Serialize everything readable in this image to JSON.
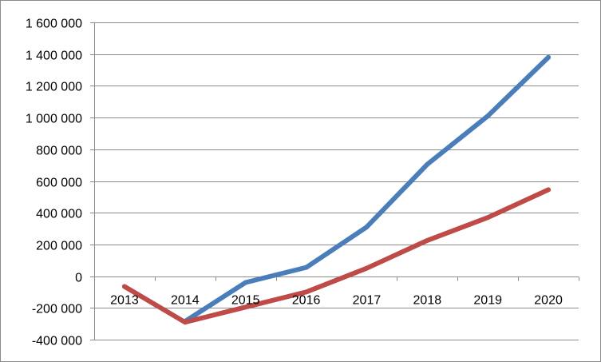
{
  "chart_data": {
    "type": "line",
    "title": "",
    "xlabel": "",
    "ylabel": "",
    "categories": [
      "2013",
      "2014",
      "2015",
      "2016",
      "2017",
      "2018",
      "2019",
      "2020"
    ],
    "ylim": [
      -400000,
      1600000
    ],
    "yticks": [
      -400000,
      -200000,
      0,
      200000,
      400000,
      600000,
      800000,
      1000000,
      1200000,
      1400000,
      1600000
    ],
    "ytick_labels": [
      "-400 000",
      "-200 000",
      "0",
      "200 000",
      "400 000",
      "600 000",
      "800 000",
      "1 000 000",
      "1 200 000",
      "1 400 000",
      "1 600 000"
    ],
    "grid": true,
    "legend": "none",
    "series": [
      {
        "color": "#4a7ebb",
        "values": [
          null,
          -285000,
          -40000,
          55000,
          310000,
          705000,
          1010000,
          1380000
        ]
      },
      {
        "color": "#be4b48",
        "values": [
          -65000,
          -290000,
          -195000,
          -100000,
          50000,
          225000,
          370000,
          545000
        ]
      }
    ]
  }
}
